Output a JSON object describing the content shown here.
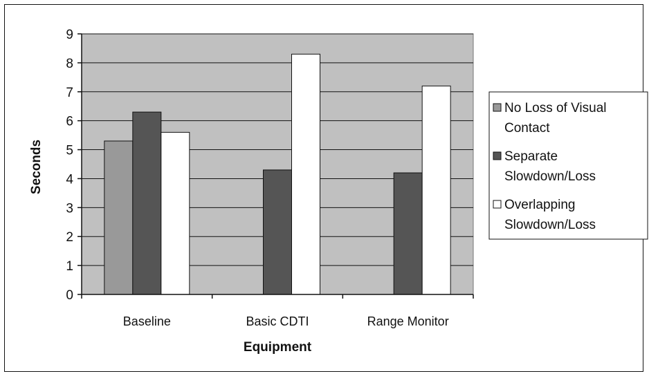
{
  "chart_data": {
    "type": "bar",
    "title": "",
    "xlabel": "Equipment",
    "ylabel": "Seconds",
    "ylim": [
      0,
      9
    ],
    "yticks": [
      0,
      1,
      2,
      3,
      4,
      5,
      6,
      7,
      8,
      9
    ],
    "categories": [
      "Baseline",
      "Basic CDTI",
      "Range Monitor"
    ],
    "series": [
      {
        "name": "No Loss of Visual Contact",
        "legend_lines": [
          "No Loss of Visual",
          "Contact"
        ],
        "color": "#999999",
        "values": [
          5.3,
          null,
          null
        ]
      },
      {
        "name": "Separate Slowdown/Loss",
        "legend_lines": [
          "Separate",
          "Slowdown/Loss"
        ],
        "color": "#555555",
        "values": [
          6.3,
          4.3,
          4.2
        ]
      },
      {
        "name": "Overlapping Slowdown/Loss",
        "legend_lines": [
          "Overlapping",
          "Slowdown/Loss"
        ],
        "color": "#ffffff",
        "values": [
          5.6,
          8.3,
          7.2
        ]
      }
    ],
    "plot_background": "#c0c0c0",
    "grid": true,
    "legend": "right"
  }
}
